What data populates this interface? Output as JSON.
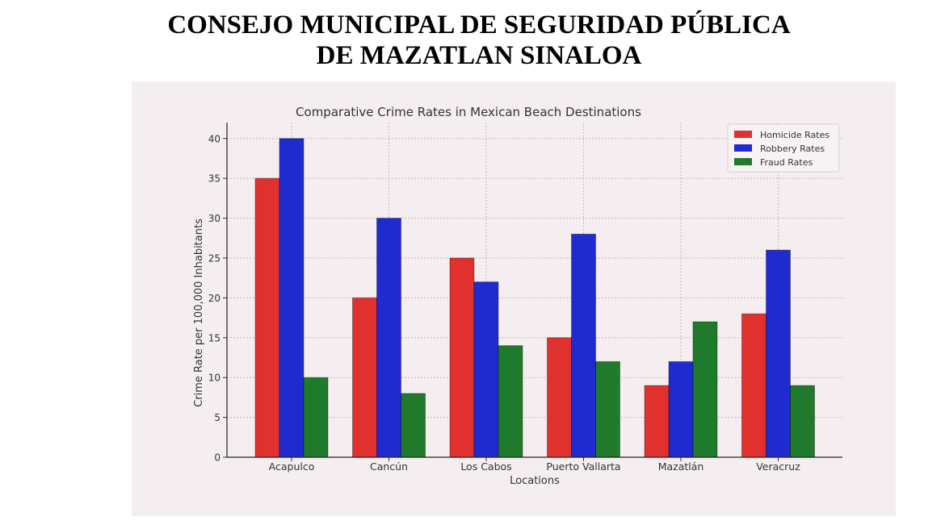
{
  "header": {
    "line1": "CONSEJO MUNICIPAL DE SEGURIDAD PÚBLICA",
    "line2": "DE MAZATLAN SINALOA"
  },
  "chart_data": {
    "type": "bar",
    "title": "Comparative Crime Rates in Mexican Beach Destinations",
    "xlabel": "Locations",
    "ylabel": "Crime Rate per 100,000 Inhabitants",
    "categories": [
      "Acapulco",
      "Cancún",
      "Los Cabos",
      "Puerto Vallarta",
      "Mazatlán",
      "Veracruz"
    ],
    "series": [
      {
        "name": "Homicide Rates",
        "color": "#e0312f",
        "values": [
          35,
          20,
          25,
          15,
          9,
          18
        ]
      },
      {
        "name": "Robbery Rates",
        "color": "#1f2bd0",
        "values": [
          40,
          30,
          22,
          28,
          12,
          26
        ]
      },
      {
        "name": "Fraud Rates",
        "color": "#1f7a2c",
        "values": [
          10,
          8,
          14,
          12,
          17,
          9
        ]
      }
    ],
    "ylim": [
      0,
      42
    ],
    "yticks": [
      0,
      5,
      10,
      15,
      20,
      25,
      30,
      35,
      40
    ],
    "grid": true,
    "legend_position": "top-right"
  }
}
